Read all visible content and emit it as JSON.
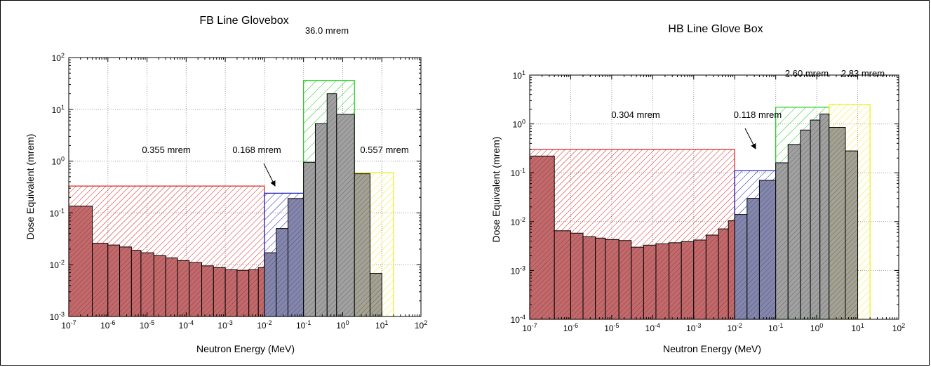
{
  "chart_data": [
    {
      "type": "bar",
      "title": "FB Line Glovebox",
      "xlabel": "Neutron Energy (MeV)",
      "ylabel": "Dose Equivalent (mrem)",
      "x_scale": "log",
      "y_scale": "log",
      "xlim": [
        "1e-7",
        "1e2"
      ],
      "ylim": [
        "1e-3",
        "1e2"
      ],
      "grid": true,
      "x_ticks": [
        {
          "base": "10",
          "exp": "-7"
        },
        {
          "base": "10",
          "exp": "-6"
        },
        {
          "base": "10",
          "exp": "-5"
        },
        {
          "base": "10",
          "exp": "-4"
        },
        {
          "base": "10",
          "exp": "-3"
        },
        {
          "base": "10",
          "exp": "-2"
        },
        {
          "base": "10",
          "exp": "-1"
        },
        {
          "base": "10",
          "exp": "0"
        },
        {
          "base": "10",
          "exp": "1"
        },
        {
          "base": "10",
          "exp": "2"
        }
      ],
      "y_ticks": [
        {
          "base": "10",
          "exp": "-3"
        },
        {
          "base": "10",
          "exp": "-2"
        },
        {
          "base": "10",
          "exp": "-1"
        },
        {
          "base": "10",
          "exp": "0"
        },
        {
          "base": "10",
          "exp": "1"
        },
        {
          "base": "10",
          "exp": "2"
        }
      ],
      "groups": [
        {
          "label": "0.355 mrem",
          "color": "#d81e1e",
          "fill": "#c4696b",
          "x_range": [
            "1e-7",
            "1e-2"
          ],
          "height": 0.33
        },
        {
          "label": "0.168 mrem",
          "color": "#1a1ac0",
          "fill": "#8486ad",
          "x_range": [
            "1e-2",
            "1e-1"
          ],
          "height": 0.24
        },
        {
          "label": "36.0 mrem",
          "color": "#19cc19",
          "fill": "#a0a1a0",
          "x_range": [
            "1e-1",
            "2"
          ],
          "height": 36.0
        },
        {
          "label": "0.557 mrem",
          "color": "#ecec1a",
          "fill": "#a3a293",
          "x_range": [
            "2",
            "20"
          ],
          "height": 0.6
        }
      ],
      "bins": [
        {
          "x0": 1e-07,
          "x1": 4e-07,
          "y": 0.135,
          "group": 0
        },
        {
          "x0": 4e-07,
          "x1": 1e-06,
          "y": 0.026,
          "group": 0
        },
        {
          "x0": 1e-06,
          "x1": 2e-06,
          "y": 0.024,
          "group": 0
        },
        {
          "x0": 2e-06,
          "x1": 4e-06,
          "y": 0.022,
          "group": 0
        },
        {
          "x0": 4e-06,
          "x1": 7e-06,
          "y": 0.019,
          "group": 0
        },
        {
          "x0": 7e-06,
          "x1": 1.5e-05,
          "y": 0.017,
          "group": 0
        },
        {
          "x0": 1.5e-05,
          "x1": 3e-05,
          "y": 0.015,
          "group": 0
        },
        {
          "x0": 3e-05,
          "x1": 6e-05,
          "y": 0.0135,
          "group": 0
        },
        {
          "x0": 6e-05,
          "x1": 0.00012,
          "y": 0.012,
          "group": 0
        },
        {
          "x0": 0.00012,
          "x1": 0.00025,
          "y": 0.011,
          "group": 0
        },
        {
          "x0": 0.00025,
          "x1": 0.0005,
          "y": 0.0095,
          "group": 0
        },
        {
          "x0": 0.0005,
          "x1": 0.001,
          "y": 0.0088,
          "group": 0
        },
        {
          "x0": 0.001,
          "x1": 0.002,
          "y": 0.008,
          "group": 0
        },
        {
          "x0": 0.002,
          "x1": 0.004,
          "y": 0.0078,
          "group": 0
        },
        {
          "x0": 0.004,
          "x1": 0.007,
          "y": 0.008,
          "group": 0
        },
        {
          "x0": 0.007,
          "x1": 0.01,
          "y": 0.0088,
          "group": 0
        },
        {
          "x0": 0.01,
          "x1": 0.02,
          "y": 0.017,
          "group": 1
        },
        {
          "x0": 0.02,
          "x1": 0.04,
          "y": 0.05,
          "group": 1
        },
        {
          "x0": 0.04,
          "x1": 0.1,
          "y": 0.19,
          "group": 1
        },
        {
          "x0": 0.1,
          "x1": 0.2,
          "y": 0.95,
          "group": 2
        },
        {
          "x0": 0.2,
          "x1": 0.4,
          "y": 5.3,
          "group": 2
        },
        {
          "x0": 0.4,
          "x1": 0.7,
          "y": 20.0,
          "group": 2
        },
        {
          "x0": 0.7,
          "x1": 2,
          "y": 8.0,
          "group": 2
        },
        {
          "x0": 2,
          "x1": 5,
          "y": 0.57,
          "group": 3
        },
        {
          "x0": 5,
          "x1": 10,
          "y": 0.0068,
          "group": 3
        }
      ]
    },
    {
      "type": "bar",
      "title": "HB Line Glove Box",
      "xlabel": "Neutron Energy (MeV)",
      "ylabel": "Dose Equivalent (mrem)",
      "x_scale": "log",
      "y_scale": "log",
      "xlim": [
        "1e-7",
        "1e2"
      ],
      "ylim": [
        "1e-4",
        "1e1"
      ],
      "grid": true,
      "x_ticks": [
        {
          "base": "10",
          "exp": "-7"
        },
        {
          "base": "10",
          "exp": "-6"
        },
        {
          "base": "10",
          "exp": "-5"
        },
        {
          "base": "10",
          "exp": "-4"
        },
        {
          "base": "10",
          "exp": "-3"
        },
        {
          "base": "10",
          "exp": "-2"
        },
        {
          "base": "10",
          "exp": "-1"
        },
        {
          "base": "10",
          "exp": "0"
        },
        {
          "base": "10",
          "exp": "1"
        },
        {
          "base": "10",
          "exp": "2"
        }
      ],
      "y_ticks": [
        {
          "base": "10",
          "exp": "-4"
        },
        {
          "base": "10",
          "exp": "-3"
        },
        {
          "base": "10",
          "exp": "-2"
        },
        {
          "base": "10",
          "exp": "-1"
        },
        {
          "base": "10",
          "exp": "0"
        },
        {
          "base": "10",
          "exp": "1"
        }
      ],
      "groups": [
        {
          "label": "0.304 mrem",
          "color": "#d81e1e",
          "fill": "#c4696b",
          "x_range": [
            "1e-7",
            "1e-2"
          ],
          "height": 0.3
        },
        {
          "label": "0.118 mrem",
          "color": "#1a1ac0",
          "fill": "#8486ad",
          "x_range": [
            "1e-2",
            "1e-1"
          ],
          "height": 0.11
        },
        {
          "label": "2.60 mrem",
          "color": "#19cc19",
          "fill": "#a0a1a0",
          "x_range": [
            "1e-1",
            "2"
          ],
          "height": 2.2
        },
        {
          "label": "2.83 mrem",
          "color": "#ecec1a",
          "fill": "#a3a293",
          "x_range": [
            "2",
            "20"
          ],
          "height": 2.5
        }
      ],
      "bins": [
        {
          "x0": 1e-07,
          "x1": 4e-07,
          "y": 0.22,
          "group": 0
        },
        {
          "x0": 4e-07,
          "x1": 1e-06,
          "y": 0.0065,
          "group": 0
        },
        {
          "x0": 1e-06,
          "x1": 2e-06,
          "y": 0.0058,
          "group": 0
        },
        {
          "x0": 2e-06,
          "x1": 4e-06,
          "y": 0.0049,
          "group": 0
        },
        {
          "x0": 4e-06,
          "x1": 7e-06,
          "y": 0.0046,
          "group": 0
        },
        {
          "x0": 7e-06,
          "x1": 1.5e-05,
          "y": 0.0043,
          "group": 0
        },
        {
          "x0": 1.5e-05,
          "x1": 3e-05,
          "y": 0.0041,
          "group": 0
        },
        {
          "x0": 3e-05,
          "x1": 6e-05,
          "y": 0.003,
          "group": 0
        },
        {
          "x0": 6e-05,
          "x1": 0.00012,
          "y": 0.0033,
          "group": 0
        },
        {
          "x0": 0.00012,
          "x1": 0.00025,
          "y": 0.0035,
          "group": 0
        },
        {
          "x0": 0.00025,
          "x1": 0.0005,
          "y": 0.0037,
          "group": 0
        },
        {
          "x0": 0.0005,
          "x1": 0.001,
          "y": 0.0039,
          "group": 0
        },
        {
          "x0": 0.001,
          "x1": 0.002,
          "y": 0.0042,
          "group": 0
        },
        {
          "x0": 0.002,
          "x1": 0.004,
          "y": 0.0053,
          "group": 0
        },
        {
          "x0": 0.004,
          "x1": 0.007,
          "y": 0.0071,
          "group": 0
        },
        {
          "x0": 0.007,
          "x1": 0.01,
          "y": 0.0104,
          "group": 0
        },
        {
          "x0": 0.01,
          "x1": 0.02,
          "y": 0.014,
          "group": 1
        },
        {
          "x0": 0.02,
          "x1": 0.04,
          "y": 0.03,
          "group": 1
        },
        {
          "x0": 0.04,
          "x1": 0.1,
          "y": 0.07,
          "group": 1
        },
        {
          "x0": 0.1,
          "x1": 0.2,
          "y": 0.16,
          "group": 2
        },
        {
          "x0": 0.2,
          "x1": 0.4,
          "y": 0.38,
          "group": 2
        },
        {
          "x0": 0.4,
          "x1": 0.7,
          "y": 0.75,
          "group": 2
        },
        {
          "x0": 0.7,
          "x1": 1.2,
          "y": 1.2,
          "group": 2
        },
        {
          "x0": 1.2,
          "x1": 2,
          "y": 1.6,
          "group": 2
        },
        {
          "x0": 2,
          "x1": 5,
          "y": 0.85,
          "group": 3
        },
        {
          "x0": 5,
          "x1": 10,
          "y": 0.28,
          "group": 3
        }
      ]
    }
  ]
}
